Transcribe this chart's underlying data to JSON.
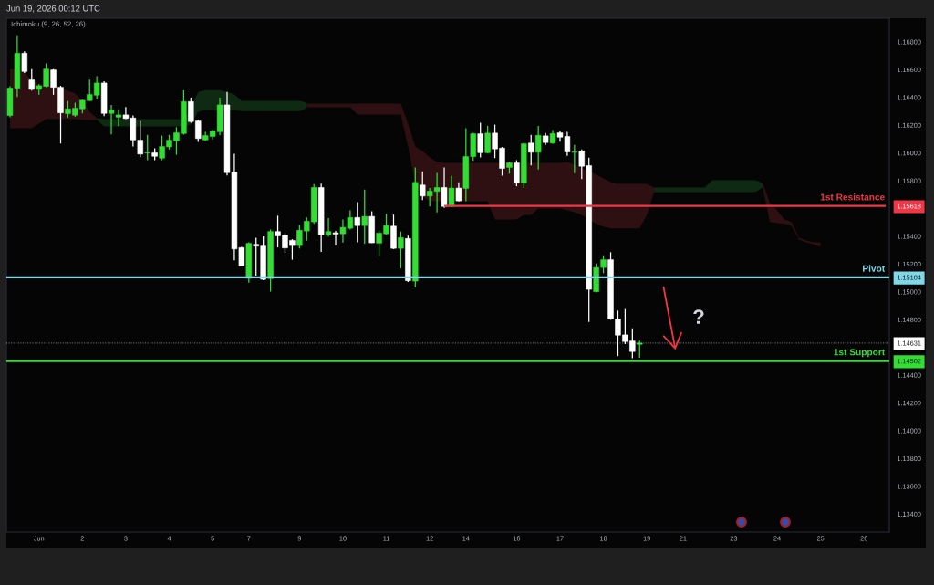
{
  "chart_data": {
    "type": "candlestick",
    "title": "Jun 19, 2026 00:12 UTC",
    "categories": [
      null,
      null,
      null,
      null,
      "Jun",
      null,
      null,
      null,
      null,
      null,
      "2",
      null,
      null,
      null,
      null,
      null,
      "3",
      null,
      null,
      null,
      null,
      null,
      "4",
      null,
      null,
      null,
      null,
      null,
      "5",
      null,
      null,
      null,
      null,
      "7",
      null,
      null,
      null,
      null,
      null,
      null,
      "9",
      null,
      null,
      null,
      null,
      null,
      "10",
      null,
      null,
      null,
      null,
      null,
      "11",
      null,
      null,
      null,
      null,
      null,
      "12",
      null,
      null,
      null,
      null,
      "14",
      null,
      null,
      null,
      null,
      null,
      null,
      "16",
      null,
      null,
      null,
      null,
      null,
      "17",
      null,
      null,
      null,
      null,
      null,
      "18",
      null,
      null,
      null,
      null,
      null,
      "19",
      null,
      null,
      null,
      null,
      "21",
      null,
      null,
      null,
      null,
      null,
      null,
      "23",
      null,
      null,
      null,
      null,
      null,
      "24",
      null,
      null,
      null,
      null,
      null,
      "25",
      null,
      null,
      null,
      null,
      null,
      "26",
      null,
      null,
      null
    ],
    "ohlc": [
      [
        1.1627,
        1.1648,
        1.16257,
        1.16467
      ],
      [
        1.16467,
        1.16847,
        1.16403,
        1.16718
      ],
      [
        1.16718,
        1.16731,
        1.16576,
        1.16587
      ],
      [
        1.16526,
        1.16604,
        1.16449,
        1.16458
      ],
      [
        1.16458,
        1.16495,
        1.16419,
        1.16484
      ],
      [
        1.1648,
        1.16644,
        1.16473,
        1.16604
      ],
      [
        1.16598,
        1.16604,
        1.16419,
        1.16473
      ],
      [
        1.16473,
        1.16484,
        1.16068,
        1.16289
      ],
      [
        1.16283,
        1.16375,
        1.16255,
        1.16318
      ],
      [
        1.16272,
        1.16362,
        1.16261,
        1.16322
      ],
      [
        1.16318,
        1.16383,
        1.16285,
        1.16379
      ],
      [
        1.16377,
        1.16528,
        1.16375,
        1.16421
      ],
      [
        1.16416,
        1.16552,
        1.16386,
        1.16504
      ],
      [
        1.16504,
        1.16517,
        1.16265,
        1.16285
      ],
      [
        1.16285,
        1.16346,
        1.16134,
        1.16309
      ],
      [
        1.16258,
        1.16314,
        1.16193,
        1.16274
      ],
      [
        1.16274,
        1.16331,
        1.16243,
        1.16248
      ],
      [
        1.16252,
        1.1627,
        1.16046,
        1.16094
      ],
      [
        1.16092,
        1.1623,
        1.1597,
        1.15992
      ],
      [
        1.15999,
        1.1613,
        1.15948,
        1.16001
      ],
      [
        1.16001,
        1.16033,
        1.15948,
        1.15976
      ],
      [
        1.15963,
        1.16125,
        1.15948,
        1.16046
      ],
      [
        1.16044,
        1.1613,
        1.16025,
        1.16092
      ],
      [
        1.16088,
        1.16186,
        1.15987,
        1.16145
      ],
      [
        1.1614,
        1.16451,
        1.16132,
        1.1637
      ],
      [
        1.1637,
        1.16399,
        1.16217,
        1.16226
      ],
      [
        1.1623,
        1.16239,
        1.16079,
        1.16104
      ],
      [
        1.16094,
        1.16151,
        1.1609,
        1.16125
      ],
      [
        1.16119,
        1.16167,
        1.16099,
        1.16158
      ],
      [
        1.16153,
        1.16399,
        1.16127,
        1.16346
      ],
      [
        1.16346,
        1.1644,
        1.15838,
        1.15858
      ],
      [
        1.15861,
        1.15994,
        1.15226,
        1.15309
      ],
      [
        1.15318,
        1.15324,
        1.15182,
        1.15187
      ],
      [
        1.15097,
        1.15357,
        1.15066,
        1.15349
      ],
      [
        1.15342,
        1.1539,
        1.15116,
        1.15329
      ],
      [
        1.15329,
        1.15399,
        1.15084,
        1.1509
      ],
      [
        1.15095,
        1.15449,
        1.15001,
        1.15434
      ],
      [
        1.15434,
        1.15548,
        1.1532,
        1.15403
      ],
      [
        1.15408,
        1.15421,
        1.1528,
        1.15316
      ],
      [
        1.1537,
        1.15379,
        1.15231,
        1.15333
      ],
      [
        1.15333,
        1.15482,
        1.15313,
        1.15443
      ],
      [
        1.15438,
        1.15535,
        1.15368,
        1.15508
      ],
      [
        1.15504,
        1.15775,
        1.15489,
        1.15751
      ],
      [
        1.15751,
        1.15779,
        1.15287,
        1.15412
      ],
      [
        1.15412,
        1.1553,
        1.15397,
        1.15434
      ],
      [
        1.15425,
        1.15439,
        1.15336,
        1.15416
      ],
      [
        1.15418,
        1.15521,
        1.15355,
        1.15464
      ],
      [
        1.15458,
        1.15587,
        1.15449,
        1.15535
      ],
      [
        1.15535,
        1.15646,
        1.15357,
        1.15477
      ],
      [
        1.15477,
        1.15736,
        1.15346,
        1.15543
      ],
      [
        1.15543,
        1.1558,
        1.15351,
        1.15353
      ],
      [
        1.15351,
        1.15441,
        1.15259,
        1.15423
      ],
      [
        1.15418,
        1.15561,
        1.15413,
        1.15477
      ],
      [
        1.15473,
        1.15556,
        1.15308,
        1.15313
      ],
      [
        1.15313,
        1.15434,
        1.15169,
        1.1539
      ],
      [
        1.15384,
        1.15405,
        1.1507,
        1.1508
      ],
      [
        1.15077,
        1.15896,
        1.15031,
        1.15788
      ],
      [
        1.15769,
        1.15867,
        1.15661,
        1.1569
      ],
      [
        1.1569,
        1.15747,
        1.15615,
        1.15725
      ],
      [
        1.15723,
        1.15856,
        1.15572,
        1.15751
      ],
      [
        1.15751,
        1.15896,
        1.15605,
        1.15615
      ],
      [
        1.15615,
        1.15836,
        1.1561,
        1.15747
      ],
      [
        1.15747,
        1.15788,
        1.15651,
        1.15655
      ],
      [
        1.15745,
        1.16178,
        1.15653,
        1.15974
      ],
      [
        1.15974,
        1.16145,
        1.15943,
        1.16138
      ],
      [
        1.16138,
        1.16217,
        1.15968,
        1.16002
      ],
      [
        1.16002,
        1.16195,
        1.15997,
        1.16143
      ],
      [
        1.16143,
        1.16204,
        1.15963,
        1.16029
      ],
      [
        1.16035,
        1.16043,
        1.15836,
        1.15889
      ],
      [
        1.15896,
        1.15935,
        1.1585,
        1.15928
      ],
      [
        1.15928,
        1.15948,
        1.1576,
        1.15784
      ],
      [
        1.15784,
        1.16073,
        1.15747,
        1.16066
      ],
      [
        1.16071,
        1.1613,
        1.15911,
        1.16005
      ],
      [
        1.16005,
        1.16195,
        1.1588,
        1.16127
      ],
      [
        1.16123,
        1.16143,
        1.16058,
        1.16075
      ],
      [
        1.16071,
        1.16165,
        1.16066,
        1.1614
      ],
      [
        1.16145,
        1.16156,
        1.16081,
        1.16114
      ],
      [
        1.16119,
        1.16151,
        1.15979,
        1.16007
      ],
      [
        1.16004,
        1.16058,
        1.15854,
        1.16007
      ],
      [
        1.16014,
        1.16025,
        1.15812,
        1.15904
      ],
      [
        1.15909,
        1.15966,
        1.14784,
        1.15018
      ],
      [
        1.15001,
        1.15204,
        1.14996,
        1.15175
      ],
      [
        1.15175,
        1.15263,
        1.15134,
        1.15231
      ],
      [
        1.15231,
        1.15285,
        1.14799,
        1.14806
      ],
      [
        1.14804,
        1.14865,
        1.14537,
        1.14688
      ],
      [
        1.1469,
        1.14876,
        1.14624,
        1.14642
      ],
      [
        1.14646,
        1.14738,
        1.14522,
        1.1457
      ],
      [
        1.14622,
        1.14648,
        1.14526,
        1.14631
      ],
      null,
      null,
      null,
      null,
      null,
      null,
      null,
      null,
      null,
      null,
      null,
      null,
      null,
      null,
      null,
      null,
      null,
      null,
      null,
      null,
      null,
      null,
      null,
      null,
      null,
      null,
      null,
      null,
      null,
      null,
      null,
      null,
      null,
      null
    ],
    "colors": [
      "#33dd33",
      "#33dd33",
      "#ffffff",
      "#ffffff",
      "#33dd33",
      "#33dd33",
      "#ffffff",
      "#ffffff",
      "#33dd33",
      "#33dd33",
      "#33dd33",
      "#33dd33",
      "#33dd33",
      "#ffffff",
      "#33dd33",
      "#33dd33",
      "#ffffff",
      "#ffffff",
      "#ffffff",
      "#33dd33",
      "#ffffff",
      "#33dd33",
      "#33dd33",
      "#33dd33",
      "#33dd33",
      "#ffffff",
      "#ffffff",
      "#33dd33",
      "#33dd33",
      "#33dd33",
      "#ffffff",
      "#ffffff",
      "#ffffff",
      "#33dd33",
      "#ffffff",
      "#ffffff",
      "#33dd33",
      "#ffffff",
      "#ffffff",
      "#ffffff",
      "#33dd33",
      "#33dd33",
      "#33dd33",
      "#ffffff",
      "#33dd33",
      "#ffffff",
      "#33dd33",
      "#33dd33",
      "#ffffff",
      "#33dd33",
      "#ffffff",
      "#33dd33",
      "#33dd33",
      "#ffffff",
      "#33dd33",
      "#ffffff",
      "#33dd33",
      "#ffffff",
      "#33dd33",
      "#33dd33",
      "#ffffff",
      "#33dd33",
      "#ffffff",
      "#33dd33",
      "#33dd33",
      "#ffffff",
      "#33dd33",
      "#ffffff",
      "#ffffff",
      "#33dd33",
      "#ffffff",
      "#33dd33",
      "#ffffff",
      "#33dd33",
      "#ffffff",
      "#33dd33",
      "#ffffff",
      "#ffffff",
      "#33dd33",
      "#ffffff",
      "#ffffff",
      "#33dd33",
      "#33dd33",
      "#ffffff",
      "#ffffff",
      "#ffffff",
      "#ffffff",
      "#33dd33",
      null,
      null,
      null,
      null,
      null,
      null,
      null,
      null,
      null,
      null,
      null,
      null,
      null,
      null,
      null,
      null,
      null,
      null,
      null,
      null,
      null,
      null,
      null,
      null,
      null,
      null,
      null,
      null,
      null,
      null,
      null,
      null,
      null,
      null
    ],
    "series": [
      {
        "type": "line",
        "color": "#2e1012",
        "values": [
          null,
          null,
          null,
          null,
          null,
          null,
          null,
          null,
          null,
          null,
          null,
          null,
          null,
          null,
          null,
          null,
          null,
          null,
          null,
          null,
          null,
          null,
          null,
          null,
          null,
          null,
          null,
          null,
          null,
          null,
          null,
          null,
          null,
          null,
          null,
          null,
          null,
          null,
          null,
          null,
          null,
          null,
          null,
          null,
          null,
          null,
          null,
          null,
          null,
          null,
          null,
          null,
          null,
          null,
          null,
          null,
          null,
          null,
          null,
          null,
          null,
          null,
          null,
          null,
          null,
          null,
          null,
          null,
          null,
          null,
          null,
          null,
          null,
          null,
          null,
          null,
          null,
          null,
          null,
          null,
          null,
          null,
          null,
          null,
          null,
          null,
          null,
          null,
          null,
          null,
          null,
          null,
          null,
          null,
          null,
          null,
          null,
          null,
          null,
          null,
          null,
          null,
          null,
          null,
          null,
          null,
          null,
          null,
          null,
          null,
          null,
          null,
          null,
          null,
          null,
          null,
          null,
          null,
          null,
          null,
          null,
          null
        ],
        "upper": [
          1.16604,
          1.16598,
          1.16585,
          1.16519,
          1.16493,
          1.16486,
          1.16486,
          1.16473,
          1.16447,
          1.16427,
          1.16375,
          1.16296,
          1.1625,
          null,
          null,
          null,
          null,
          null,
          null,
          null,
          null,
          null,
          null,
          null,
          null,
          null,
          null,
          null,
          null,
          null,
          null,
          null,
          null,
          null,
          null,
          null,
          null,
          null,
          null,
          null,
          null,
          1.16355,
          1.16355,
          1.16355,
          1.16355,
          1.16355,
          1.16355,
          1.16355,
          1.16355,
          1.16355,
          1.16355,
          1.16355,
          1.16355,
          1.16355,
          1.16355,
          1.16211,
          1.16046,
          1.16014,
          1.15968,
          1.15935,
          1.15928,
          1.15928,
          1.15928,
          1.15928,
          1.15928,
          1.15928,
          1.15928,
          1.15928,
          1.15928,
          1.15928,
          1.15928,
          1.15928,
          1.15928,
          1.15928,
          1.15928,
          1.15928,
          1.15928,
          1.15935,
          1.15915,
          1.15889,
          1.15869,
          1.15843,
          1.15817,
          1.15791,
          1.15777,
          1.15777,
          1.15777,
          1.15777,
          1.15777,
          1.15751,
          null,
          null,
          null,
          null,
          null,
          null,
          null,
          null,
          null,
          null,
          null,
          null,
          null,
          null,
          1.15784,
          1.1564,
          1.15587,
          1.15521,
          1.15502,
          1.1539,
          1.1537,
          1.15357,
          1.15357,
          null,
          null,
          null,
          null,
          null,
          null,
          null,
          null,
          null
        ],
        "lower": [
          1.16178,
          1.16178,
          1.16178,
          1.16178,
          1.16211,
          1.16243,
          1.16243,
          1.16243,
          1.16243,
          1.16243,
          1.16237,
          1.16237,
          1.16237,
          null,
          null,
          null,
          null,
          null,
          null,
          null,
          null,
          null,
          null,
          null,
          null,
          null,
          null,
          null,
          null,
          null,
          null,
          null,
          null,
          null,
          null,
          null,
          null,
          null,
          null,
          null,
          null,
          1.16329,
          1.16329,
          1.16329,
          1.16329,
          1.16329,
          1.16329,
          1.16329,
          1.16276,
          1.16276,
          1.16276,
          1.16276,
          1.16276,
          1.16276,
          1.16276,
          1.16046,
          1.15784,
          1.15685,
          1.15653,
          1.15653,
          1.15653,
          1.15653,
          1.15653,
          1.15653,
          1.15653,
          1.15653,
          1.15653,
          1.15521,
          1.15521,
          1.15521,
          1.15521,
          1.15554,
          1.15554,
          1.156,
          1.156,
          1.156,
          1.156,
          1.15587,
          1.15574,
          1.15554,
          1.15521,
          1.15489,
          1.15469,
          1.15456,
          1.15456,
          1.15456,
          1.15456,
          1.15456,
          1.15554,
          1.15718,
          null,
          null,
          null,
          null,
          null,
          null,
          null,
          null,
          null,
          null,
          null,
          null,
          null,
          null,
          1.15751,
          1.15502,
          1.15495,
          1.15489,
          1.15475,
          1.15377,
          1.15357,
          1.15344,
          1.15324,
          null,
          null,
          null,
          null,
          null,
          null,
          null,
          null,
          null
        ]
      },
      {
        "type": "line",
        "color": "#0f2a12",
        "values": [
          null,
          null,
          null,
          null,
          null,
          null,
          null,
          null,
          null,
          null,
          null,
          null,
          null,
          null,
          null,
          null,
          null,
          null,
          null,
          null,
          null,
          null,
          null,
          null,
          null,
          null,
          null,
          null,
          null,
          null,
          null,
          null,
          null,
          null,
          null,
          null,
          null,
          null,
          null,
          null,
          null,
          null,
          null,
          null,
          null,
          null,
          null,
          null,
          null,
          null,
          null,
          null,
          null,
          null,
          null,
          null,
          null,
          null,
          null,
          null,
          null,
          null,
          null,
          null,
          null,
          null,
          null,
          null,
          null,
          null,
          null,
          null,
          null,
          null,
          null,
          null,
          null,
          null,
          null,
          null,
          null,
          null,
          null,
          null,
          null,
          null,
          null,
          null,
          null,
          null,
          null,
          null,
          null,
          null,
          null,
          null,
          null,
          null,
          null,
          null,
          null,
          null,
          null,
          null,
          null,
          null,
          null,
          null,
          null,
          null,
          null,
          null,
          null,
          null,
          null,
          null,
          null,
          null,
          null,
          null,
          null,
          null
        ],
        "upper": [
          null,
          null,
          null,
          null,
          null,
          null,
          null,
          null,
          null,
          null,
          null,
          null,
          1.1625,
          1.16243,
          1.16243,
          1.16243,
          1.16243,
          1.16243,
          1.16243,
          1.16243,
          1.16243,
          1.16243,
          1.16243,
          1.16243,
          1.16243,
          1.16322,
          1.1644,
          1.16453,
          1.16453,
          1.16453,
          1.1644,
          1.16421,
          1.16375,
          1.16375,
          1.16375,
          1.16375,
          1.16375,
          1.16375,
          1.16375,
          1.16375,
          1.16375,
          1.16362,
          null,
          null,
          null,
          null,
          null,
          null,
          null,
          null,
          null,
          null,
          null,
          null,
          null,
          null,
          null,
          null,
          null,
          null,
          null,
          null,
          null,
          null,
          null,
          null,
          null,
          null,
          null,
          null,
          null,
          null,
          null,
          null,
          null,
          null,
          null,
          null,
          null,
          null,
          null,
          null,
          null,
          null,
          null,
          null,
          null,
          null,
          null,
          1.15751,
          1.15751,
          1.15751,
          1.15751,
          1.15751,
          1.15751,
          1.15751,
          1.15751,
          1.15804,
          1.15804,
          1.15804,
          1.15804,
          1.15804,
          1.15804,
          1.15804,
          1.15784,
          null,
          null,
          null,
          null,
          null,
          null,
          null,
          null,
          null,
          null,
          null,
          null,
          null,
          null,
          null,
          null,
          null
        ],
        "lower": [
          null,
          null,
          null,
          null,
          null,
          null,
          null,
          null,
          null,
          null,
          null,
          null,
          1.16237,
          1.16191,
          1.16191,
          1.16191,
          1.16191,
          1.16191,
          1.16191,
          1.16191,
          1.16191,
          1.16191,
          1.16191,
          1.16191,
          1.16191,
          1.16204,
          1.16296,
          1.16309,
          1.16309,
          1.16309,
          1.16309,
          1.16309,
          1.16302,
          1.16302,
          1.16302,
          1.16302,
          1.16302,
          1.16302,
          1.16302,
          1.16302,
          1.16302,
          1.16322,
          null,
          null,
          null,
          null,
          null,
          null,
          null,
          null,
          null,
          null,
          null,
          null,
          null,
          null,
          null,
          null,
          null,
          null,
          null,
          null,
          null,
          null,
          null,
          null,
          null,
          null,
          null,
          null,
          null,
          null,
          null,
          null,
          null,
          null,
          null,
          null,
          null,
          null,
          null,
          null,
          null,
          null,
          null,
          null,
          null,
          null,
          null,
          1.15718,
          1.15718,
          1.15718,
          1.15718,
          1.15718,
          1.15718,
          1.15718,
          1.15718,
          1.15718,
          1.15718,
          1.15718,
          1.15718,
          1.15718,
          1.15718,
          1.15718,
          1.15751,
          null,
          null,
          null,
          null,
          null,
          null,
          null,
          null,
          null,
          null,
          null,
          null,
          null,
          null,
          null,
          null,
          null
        ]
      },
      {
        "type": "line",
        "name": "1st Resistance",
        "color": "#f23645",
        "values": [
          null,
          null,
          null,
          null,
          null,
          null,
          null,
          null,
          null,
          null,
          null,
          null,
          null,
          null,
          null,
          null,
          null,
          null,
          null,
          null,
          null,
          null,
          null,
          null,
          null,
          null,
          null,
          null,
          null,
          null,
          null,
          null,
          null,
          null,
          null,
          null,
          null,
          null,
          null,
          null,
          null,
          null,
          null,
          null,
          null,
          null,
          null,
          null,
          null,
          null,
          null,
          null,
          null,
          null,
          null,
          null,
          null,
          null,
          null,
          null,
          1.15618,
          1.15618,
          1.15618,
          1.15618,
          1.15618,
          1.15618,
          1.15618,
          1.15618,
          1.15618,
          1.15618,
          1.15618,
          1.15618,
          1.15618,
          1.15618,
          1.15618,
          1.15618,
          1.15618,
          1.15618,
          1.15618,
          1.15618,
          1.15618,
          1.15618,
          1.15618,
          1.15618,
          1.15618,
          1.15618,
          1.15618,
          1.15618,
          1.15618,
          1.15618,
          1.15618,
          1.15618,
          1.15618,
          1.15618,
          1.15618,
          1.15618,
          1.15618,
          1.15618,
          1.15618,
          1.15618,
          1.15618,
          1.15618,
          1.15618,
          1.15618,
          1.15618,
          1.15618,
          1.15618,
          1.15618,
          1.15618,
          1.15618,
          1.15618,
          1.15618,
          1.15618,
          1.15618,
          1.15618,
          1.15618,
          1.15618,
          1.15618,
          1.15618,
          1.15618,
          1.15618,
          1.15618
        ]
      }
    ],
    "ylim": [
      1.1327,
      1.1697
    ],
    "yticks": [
      {
        "value": 1.168,
        "label": "1.16800"
      },
      {
        "value": 1.166,
        "label": "1.16600"
      },
      {
        "value": 1.164,
        "label": "1.16400"
      },
      {
        "value": 1.162,
        "label": "1.16200"
      },
      {
        "value": 1.16,
        "label": "1.16000"
      },
      {
        "value": 1.158,
        "label": "1.15800"
      },
      1.15618,
      {
        "value": 1.154,
        "label": "1.15400"
      },
      {
        "value": 1.152,
        "label": "1.15200"
      },
      1.15104,
      {
        "value": 1.15,
        "label": "1.15000"
      },
      {
        "value": 1.148,
        "label": "1.14800"
      },
      1.14631,
      1.14502,
      {
        "value": 1.144,
        "label": "1.14400"
      },
      {
        "value": 1.142,
        "label": "1.14200"
      },
      {
        "value": 1.14,
        "label": "1.14000"
      },
      {
        "value": 1.138,
        "label": "1.13800"
      },
      {
        "value": 1.136,
        "label": "1.13600"
      },
      {
        "value": 1.134,
        "label": "1.13400"
      }
    ],
    "ref_lines": [
      {
        "axis": "y",
        "value": 1.15104,
        "label": "Pivot",
        "color": "#80d8e6",
        "line_style": "solid"
      },
      {
        "axis": "y",
        "value": 1.14631,
        "color": "#ffffff",
        "line_style": "dotted"
      },
      {
        "axis": "y",
        "value": 1.14502,
        "label": "1st Support",
        "color": "#33dd33",
        "line_style": "solid"
      }
    ],
    "annotations": [
      "Ichimoku (9, 26, 52, 26)",
      "?"
    ],
    "grid": false
  }
}
